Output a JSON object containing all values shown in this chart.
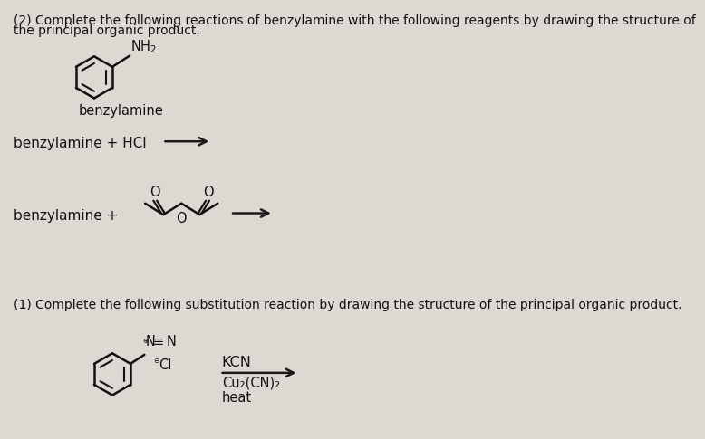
{
  "bg_color": "#ddd8d2",
  "text_color": "#111111",
  "line_color": "#111111",
  "title1": "(2) Complete the following reactions of benzylamine with the following reagents by drawing the structure of",
  "title1b": "the principal organic product.",
  "title2": "(1) Complete the following substitution reaction by drawing the structure of the principal organic product.",
  "label_benzylamine": "benzylamine",
  "reaction1_text": "benzylamine + HCl",
  "reaction2_prefix": "benzylamine +",
  "kcn_line1": "KCN",
  "kcn_line2": "Cu₂(CN)₂",
  "kcn_line3": "heat"
}
